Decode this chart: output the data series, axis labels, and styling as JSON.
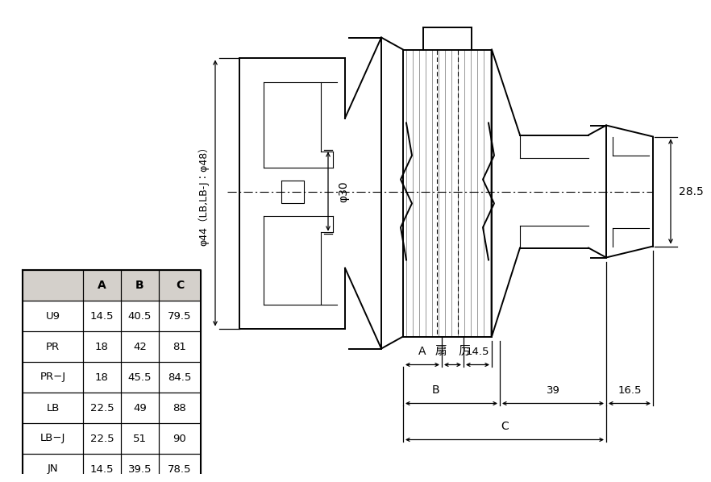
{
  "bg_color": "#ffffff",
  "table_header_bg": "#d4d0cb",
  "table_rows": [
    [
      "",
      "A",
      "B",
      "C"
    ],
    [
      "U9",
      "14.5",
      "40.5",
      "79.5"
    ],
    [
      "PR",
      "18",
      "42",
      "81"
    ],
    [
      "PR−J",
      "18",
      "45.5",
      "84.5"
    ],
    [
      "LB",
      "22.5",
      "49",
      "88"
    ],
    [
      "LB−J",
      "22.5",
      "51",
      "90"
    ],
    [
      "JN",
      "14.5",
      "39.5",
      "78.5"
    ]
  ],
  "dim_phi44": "φ44（LB,LB-J：φ48）",
  "dim_phi30": "φ30",
  "dim_A": "A",
  "dim_B": "B",
  "dim_C": "C",
  "dim_fuatsu": "扇　厉",
  "dim_14_5": "14.5",
  "dim_39": "39",
  "dim_16_5": "16.5",
  "dim_28_5": "28.5"
}
